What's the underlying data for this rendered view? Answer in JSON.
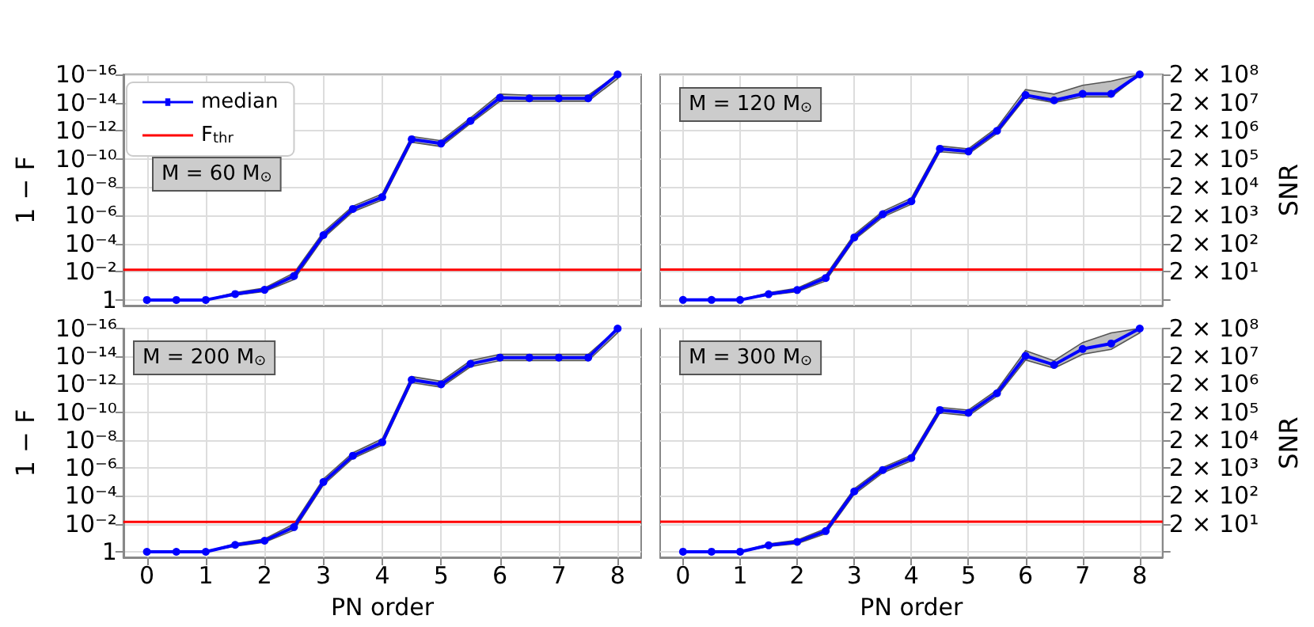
{
  "chart_data": [
    {
      "type": "line",
      "categories": [
        null,
        null,
        null,
        null,
        null,
        null,
        null,
        null,
        null,
        null,
        null,
        null,
        null,
        null,
        null,
        null,
        null
      ],
      "ylabel": "1 − F",
      "annotations": [
        "M = 60 M$_{⊙}$"
      ],
      "legend": "top left",
      "grid": true,
      "marker": "circle",
      "line_style": "solid",
      "log": "y",
      "tick_labels": "y",
      "ylim": [
        2.5,
        1e-16
      ],
      "yticks": [
        {
          "value": 1,
          "label": "1"
        },
        {
          "value": 0.01,
          "label": "10⁻²"
        },
        {
          "value": 0.0001,
          "label": "10⁻⁴"
        },
        {
          "value": 1e-06,
          "label": "10⁻⁶"
        },
        {
          "value": 1e-08,
          "label": "10⁻⁸"
        },
        {
          "value": 1e-10,
          "label": "10⁻¹⁰"
        },
        {
          "value": 1e-12,
          "label": "10⁻¹²"
        },
        {
          "value": 1e-14,
          "label": "10⁻¹⁴"
        },
        {
          "value": 1e-16,
          "label": "10⁻¹⁶"
        }
      ],
      "ref_lines": [
        {
          "axis": "y",
          "value": 0.0072,
          "label": "F$_{thr}$",
          "color": "#ff0000"
        }
      ],
      "series": [
        {
          "name": "median",
          "color": "#0000ff",
          "values": [
            1,
            1,
            1,
            0.38,
            0.19,
            0.02,
            2.5e-05,
            3.5e-07,
            5e-08,
            4e-12,
            8e-12,
            2e-13,
            4.5e-15,
            5e-15,
            5e-15,
            5e-15,
            1e-16
          ],
          "lower": [
            1,
            1,
            1,
            0.3,
            0.14,
            0.012,
            1.5e-05,
            2.2e-07,
            3e-08,
            2.5e-12,
            5e-12,
            1.2e-13,
            2.5e-15,
            3e-15,
            3e-15,
            3e-15,
            1e-16
          ],
          "upper": [
            1,
            1,
            1,
            0.45,
            0.25,
            0.035,
            4e-05,
            5.5e-07,
            8e-08,
            6.5e-12,
            1.3e-11,
            3e-13,
            8e-15,
            8e-15,
            8e-15,
            8e-15,
            2e-16
          ]
        }
      ]
    },
    {
      "type": "line",
      "categories": [
        null,
        null,
        null,
        null,
        null,
        null,
        null,
        null,
        null,
        null,
        null,
        null,
        null,
        null,
        null,
        null,
        null
      ],
      "ylabel": "SNR",
      "annotations": [
        "M = 120 M$_{⊙}$"
      ],
      "grid": true,
      "marker": "circle",
      "line_style": "solid",
      "log": "y",
      "tick_labels": "y",
      "ylim": [
        1.26,
        200000000.0
      ],
      "yticks": [
        {
          "value": 2,
          "label": null
        },
        {
          "value": 20,
          "label": "2 × 10¹"
        },
        {
          "value": 200,
          "label": "2 × 10²"
        },
        {
          "value": 2000,
          "label": "2 × 10³"
        },
        {
          "value": 20000,
          "label": "2 × 10⁴"
        },
        {
          "value": 200000,
          "label": "2 × 10⁵"
        },
        {
          "value": 2000000,
          "label": "2 × 10⁶"
        },
        {
          "value": 20000000,
          "label": "2 × 10⁷"
        },
        {
          "value": 200000000,
          "label": "2 × 10⁸"
        }
      ],
      "ref_lines": [
        {
          "axis": "y",
          "value": 24,
          "color": "#ff0000"
        }
      ],
      "series": [
        {
          "color": "#0000ff",
          "values": [
            2,
            2,
            2,
            3.2,
            4.5,
            12,
            330,
            2200,
            6300,
            460000.0,
            370000.0,
            2000000.0,
            37000000.0,
            24000000.0,
            41000000.0,
            41000000.0,
            200000000.0
          ],
          "lower": [
            2,
            2,
            2,
            3,
            3.9,
            9.4,
            270,
            1750,
            5000,
            360000.0,
            300000.0,
            1600000.0,
            30000000.0,
            20000000.0,
            32000000.0,
            32000000.0,
            200000000.0
          ],
          "upper": [
            2,
            2,
            2,
            3.6,
            5.2,
            15,
            420,
            2800,
            8200,
            580000.0,
            460000.0,
            2600000.0,
            58000000.0,
            40000000.0,
            82000000.0,
            115000000.0,
            200000000.0
          ]
        }
      ]
    },
    {
      "type": "line",
      "x": [
        0,
        0.5,
        1,
        1.5,
        2,
        2.5,
        3,
        3.5,
        4,
        4.5,
        5,
        5.5,
        6,
        6.5,
        7,
        7.5,
        8
      ],
      "xlabel": "PN order",
      "ylabel": "1 − F",
      "annotations": [
        "M = 200 M$_{⊙}$"
      ],
      "grid": true,
      "marker": "circle",
      "line_style": "solid",
      "log": "y",
      "xlim": [
        -0.4,
        8.4
      ],
      "xticks": [
        0,
        1,
        2,
        3,
        4,
        5,
        6,
        7,
        8
      ],
      "ylim": [
        2.5,
        1e-16
      ],
      "yticks": [
        {
          "value": 1,
          "label": "1"
        },
        {
          "value": 0.01,
          "label": "10⁻²"
        },
        {
          "value": 0.0001,
          "label": "10⁻⁴"
        },
        {
          "value": 1e-06,
          "label": "10⁻⁶"
        },
        {
          "value": 1e-08,
          "label": "10⁻⁸"
        },
        {
          "value": 1e-10,
          "label": "10⁻¹⁰"
        },
        {
          "value": 1e-12,
          "label": "10⁻¹²"
        },
        {
          "value": 1e-14,
          "label": "10⁻¹⁴"
        },
        {
          "value": 1e-16,
          "label": "10⁻¹⁶"
        }
      ],
      "ref_lines": [
        {
          "axis": "y",
          "value": 0.0072,
          "color": "#ff0000"
        }
      ],
      "series": [
        {
          "color": "#0000ff",
          "values": [
            1,
            1,
            1,
            0.32,
            0.16,
            0.017,
            1e-05,
            1.3e-07,
            1.4e-08,
            4.7e-13,
            1e-12,
            3.4e-14,
            1.2e-14,
            1.2e-14,
            1.2e-14,
            1.2e-14,
            1e-16
          ],
          "lower": [
            1,
            1,
            1,
            0.26,
            0.12,
            0.01,
            6e-06,
            8e-08,
            8e-09,
            2.8e-13,
            6e-13,
            2e-14,
            7e-15,
            7e-15,
            7e-15,
            7e-15,
            1e-16
          ],
          "upper": [
            1,
            1,
            1,
            0.4,
            0.21,
            0.028,
            1.6e-05,
            2e-07,
            2.2e-08,
            7.5e-13,
            1.6e-12,
            5.5e-14,
            2e-14,
            2e-14,
            2e-14,
            2e-14,
            2e-16
          ]
        }
      ]
    },
    {
      "type": "line",
      "x": [
        0,
        0.5,
        1,
        1.5,
        2,
        2.5,
        3,
        3.5,
        4,
        4.5,
        5,
        5.5,
        6,
        6.5,
        7,
        7.5,
        8
      ],
      "xlabel": "PN order",
      "ylabel": "SNR",
      "annotations": [
        "M = 300 M$_{⊙}$"
      ],
      "grid": true,
      "marker": "circle",
      "line_style": "solid",
      "log": "y",
      "xlim": [
        -0.4,
        8.4
      ],
      "xticks": [
        0,
        1,
        2,
        3,
        4,
        5,
        6,
        7,
        8
      ],
      "ylim": [
        1.26,
        200000000.0
      ],
      "yticks": [
        {
          "value": 2,
          "label": null
        },
        {
          "value": 20,
          "label": "2 × 10¹"
        },
        {
          "value": 200,
          "label": "2 × 10²"
        },
        {
          "value": 2000,
          "label": "2 × 10³"
        },
        {
          "value": 20000,
          "label": "2 × 10⁴"
        },
        {
          "value": 200000,
          "label": "2 × 10⁵"
        },
        {
          "value": 2000000,
          "label": "2 × 10⁶"
        },
        {
          "value": 20000000,
          "label": "2 × 10⁷"
        },
        {
          "value": 200000000,
          "label": "2 × 10⁸"
        }
      ],
      "ref_lines": [
        {
          "axis": "y",
          "value": 24,
          "color": "#ff0000"
        }
      ],
      "series": [
        {
          "color": "#0000ff",
          "values": [
            2,
            2,
            2,
            3.4,
            4.5,
            11,
            290,
            1700,
            4600,
            240000.0,
            190000.0,
            960000.0,
            21000000.0,
            10000000.0,
            37000000.0,
            58000000.0,
            200000000.0
          ],
          "lower": [
            2,
            2,
            2,
            3.1,
            3.9,
            8.9,
            230,
            1350,
            3650,
            190000.0,
            150000.0,
            760000.0,
            15000000.0,
            7600000.0,
            24000000.0,
            36000000.0,
            140000000.0
          ],
          "upper": [
            2,
            2,
            2,
            3.8,
            5.2,
            13.5,
            365,
            2100,
            5800,
            300000.0,
            240000.0,
            1260000.0,
            32000000.0,
            14000000.0,
            63000000.0,
            140000000.0,
            200000000.0
          ]
        }
      ]
    }
  ]
}
